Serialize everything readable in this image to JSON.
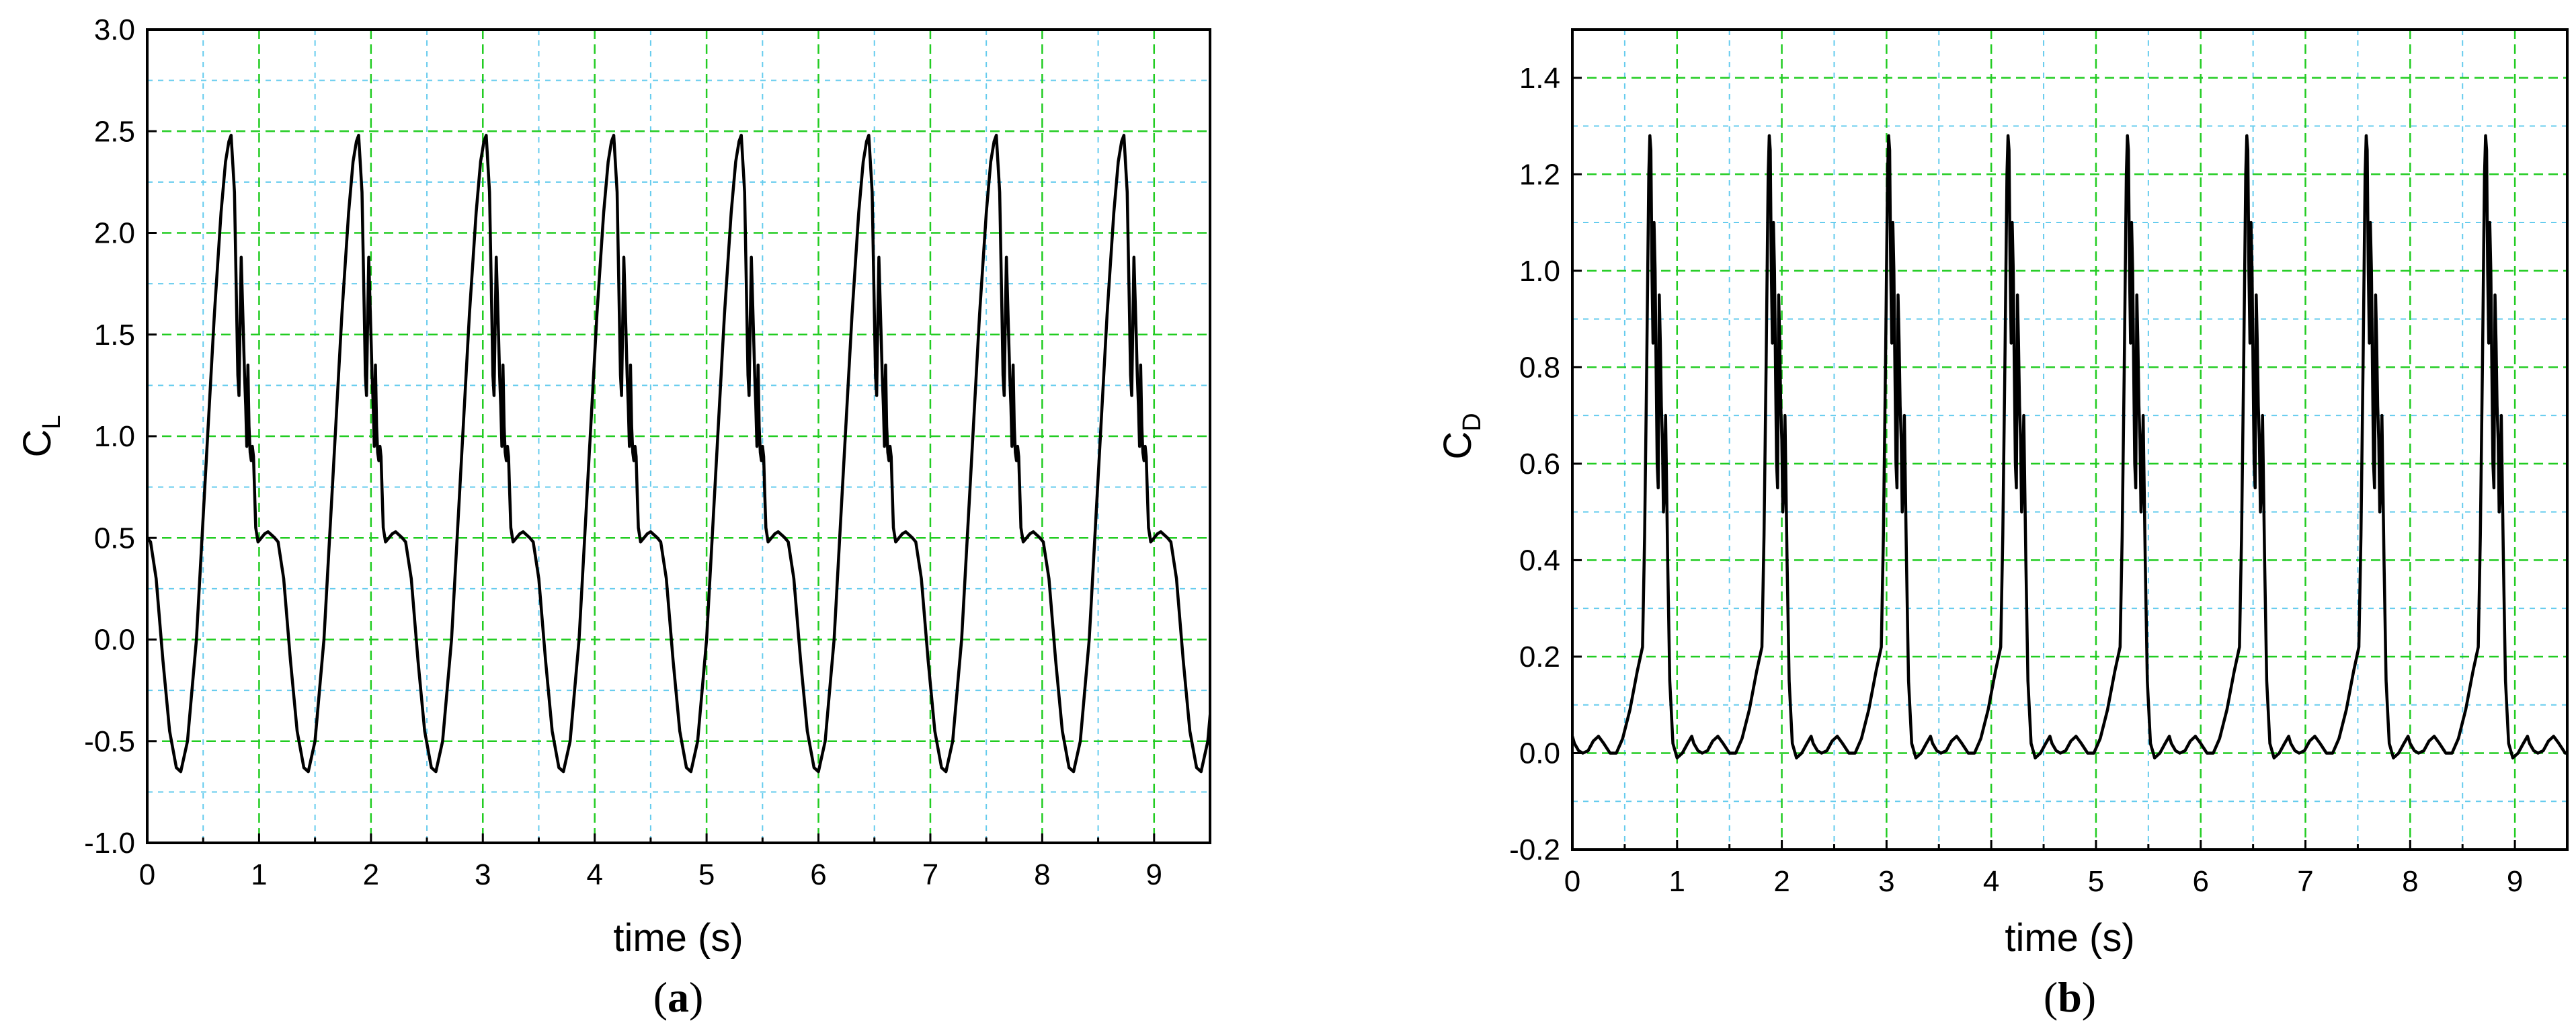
{
  "chart_data": [
    {
      "type": "line",
      "panel_label": "a",
      "xlabel": "time (s)",
      "ylabel_main": "C",
      "ylabel_sub": "L",
      "xlim": [
        0,
        9.5
      ],
      "ylim": [
        -1.0,
        3.0
      ],
      "xticks": [
        0,
        1,
        2,
        3,
        4,
        5,
        6,
        7,
        8,
        9
      ],
      "xtick_labels": [
        "0",
        "1",
        "2",
        "3",
        "4",
        "5",
        "6",
        "7",
        "8",
        "9"
      ],
      "yticks": [
        -1.0,
        -0.5,
        0.0,
        0.5,
        1.0,
        1.5,
        2.0,
        2.5,
        3.0
      ],
      "ytick_labels": [
        "-1.0",
        "-0.5",
        "0.0",
        "0.5",
        "1.0",
        "1.5",
        "2.0",
        "2.5",
        "3.0"
      ],
      "grid": true,
      "series": [
        {
          "color": "#000000",
          "period": 1.14,
          "cycles": 9,
          "cycle_t": [
            0,
            0.03,
            0.08,
            0.14,
            0.2,
            0.26,
            0.3,
            0.36,
            0.44,
            0.52,
            0.6,
            0.66,
            0.7,
            0.73,
            0.75,
            0.78,
            0.8,
            0.81,
            0.82,
            0.83,
            0.84,
            0.86,
            0.87,
            0.88,
            0.89,
            0.9,
            0.91,
            0.92,
            0.93,
            0.94,
            0.95,
            0.96,
            0.97,
            0.99,
            1.02,
            1.05,
            1.08,
            1.1,
            1.12,
            1.14
          ],
          "cycle_y": [
            0.5,
            0.48,
            0.3,
            -0.1,
            -0.45,
            -0.63,
            -0.65,
            -0.5,
            0.0,
            0.8,
            1.6,
            2.1,
            2.35,
            2.45,
            2.48,
            2.2,
            1.6,
            1.3,
            1.2,
            1.55,
            1.88,
            1.5,
            1.3,
            1.15,
            0.95,
            1.35,
            1.05,
            0.92,
            0.88,
            0.95,
            0.9,
            0.72,
            0.55,
            0.48,
            0.5,
            0.52,
            0.53,
            0.52,
            0.51,
            0.5
          ]
        }
      ]
    },
    {
      "type": "line",
      "panel_label": "b",
      "xlabel": "time (s)",
      "ylabel_main": "C",
      "ylabel_sub": "D",
      "xlim": [
        0,
        9.5
      ],
      "ylim": [
        -0.2,
        1.5
      ],
      "xticks": [
        0,
        1,
        2,
        3,
        4,
        5,
        6,
        7,
        8,
        9
      ],
      "xtick_labels": [
        "0",
        "1",
        "2",
        "3",
        "4",
        "5",
        "6",
        "7",
        "8",
        "9"
      ],
      "yticks": [
        -0.2,
        0.0,
        0.2,
        0.4,
        0.6,
        0.8,
        1.0,
        1.2,
        1.4
      ],
      "ytick_labels": [
        "-0.2",
        "0.0",
        "0.2",
        "0.4",
        "0.6",
        "0.8",
        "1.0",
        "1.2",
        "1.4"
      ],
      "grid": true,
      "series": [
        {
          "color": "#000000",
          "period": 1.14,
          "cycles": 9,
          "cycle_t": [
            0,
            0.02,
            0.06,
            0.1,
            0.15,
            0.2,
            0.25,
            0.3,
            0.36,
            0.42,
            0.48,
            0.55,
            0.62,
            0.67,
            0.69,
            0.71,
            0.73,
            0.74,
            0.75,
            0.76,
            0.77,
            0.78,
            0.79,
            0.8,
            0.81,
            0.82,
            0.83,
            0.84,
            0.85,
            0.86,
            0.87,
            0.88,
            0.89,
            0.91,
            0.93,
            0.96,
            1.0,
            1.05,
            1.1,
            1.14
          ],
          "cycle_y": [
            0.035,
            0.02,
            0.005,
            0.0,
            0.005,
            0.025,
            0.035,
            0.02,
            0.0,
            0.0,
            0.03,
            0.09,
            0.17,
            0.22,
            0.45,
            0.8,
            1.2,
            1.28,
            1.25,
            1.0,
            0.85,
            1.1,
            1.0,
            0.8,
            0.6,
            0.55,
            0.95,
            0.85,
            0.72,
            0.65,
            0.5,
            0.55,
            0.7,
            0.4,
            0.15,
            0.02,
            -0.01,
            0.0,
            0.02,
            0.035
          ]
        }
      ]
    }
  ],
  "captions": {
    "a": {
      "open": "(",
      "letter": "a",
      "close": ")"
    },
    "b": {
      "open": "(",
      "letter": "b",
      "close": ")"
    }
  },
  "colors": {
    "grid_major": "#22cc22",
    "grid_minor": "#66ccee",
    "line": "#000000"
  }
}
